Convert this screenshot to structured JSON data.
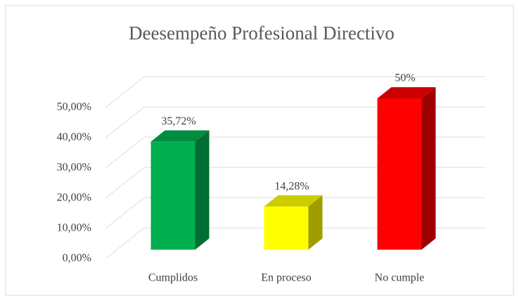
{
  "chart_data": {
    "type": "bar",
    "title": "Deesempeño Profesional Directivo",
    "categories": [
      "Cumplidos",
      "En proceso",
      "No cumple"
    ],
    "values": [
      35.72,
      14.28,
      50
    ],
    "value_labels": [
      "35,72%",
      "14,28%",
      "50%"
    ],
    "colors": [
      "#00b050",
      "#ffff00",
      "#ff0000"
    ],
    "ylim": [
      0,
      50
    ],
    "yticks": [
      {
        "value": 0,
        "label": "0,00%"
      },
      {
        "value": 10,
        "label": "10,00%"
      },
      {
        "value": 20,
        "label": "20,00%"
      },
      {
        "value": 30,
        "label": "30,00%"
      },
      {
        "value": 40,
        "label": "40,00%"
      },
      {
        "value": 50,
        "label": "50,00%"
      }
    ],
    "grid": true
  }
}
